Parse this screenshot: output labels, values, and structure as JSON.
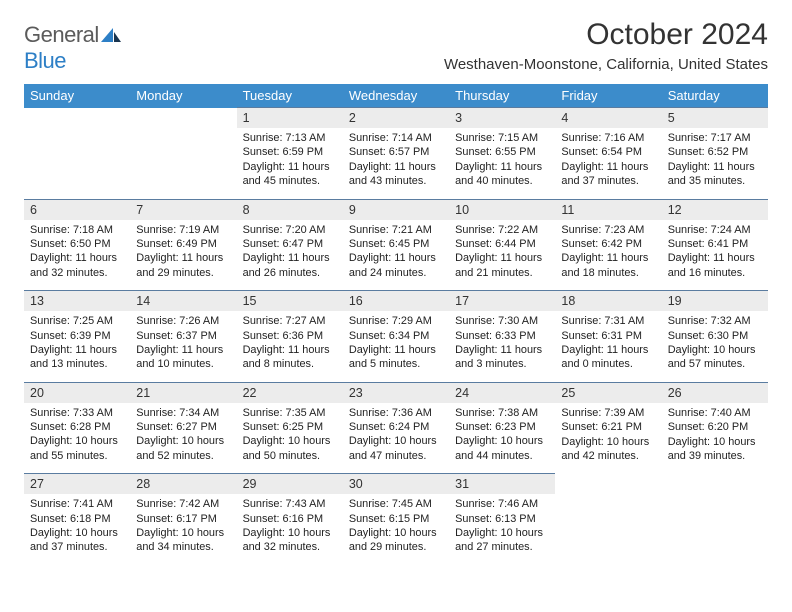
{
  "logo": {
    "text1": "General",
    "text2": "Blue"
  },
  "title": "October 2024",
  "location": "Westhaven-Moonstone, California, United States",
  "dayHeaders": [
    "Sunday",
    "Monday",
    "Tuesday",
    "Wednesday",
    "Thursday",
    "Friday",
    "Saturday"
  ],
  "colors": {
    "header_bg": "#3c8ccb",
    "header_text": "#ffffff",
    "daynum_bg": "#ececec",
    "rule": "#5a7ca0",
    "logo_gray": "#5b5b5b",
    "logo_blue": "#2d7fc6"
  },
  "weeks": [
    [
      null,
      null,
      {
        "n": "1",
        "sr": "Sunrise: 7:13 AM",
        "ss": "Sunset: 6:59 PM",
        "dl": "Daylight: 11 hours and 45 minutes."
      },
      {
        "n": "2",
        "sr": "Sunrise: 7:14 AM",
        "ss": "Sunset: 6:57 PM",
        "dl": "Daylight: 11 hours and 43 minutes."
      },
      {
        "n": "3",
        "sr": "Sunrise: 7:15 AM",
        "ss": "Sunset: 6:55 PM",
        "dl": "Daylight: 11 hours and 40 minutes."
      },
      {
        "n": "4",
        "sr": "Sunrise: 7:16 AM",
        "ss": "Sunset: 6:54 PM",
        "dl": "Daylight: 11 hours and 37 minutes."
      },
      {
        "n": "5",
        "sr": "Sunrise: 7:17 AM",
        "ss": "Sunset: 6:52 PM",
        "dl": "Daylight: 11 hours and 35 minutes."
      }
    ],
    [
      {
        "n": "6",
        "sr": "Sunrise: 7:18 AM",
        "ss": "Sunset: 6:50 PM",
        "dl": "Daylight: 11 hours and 32 minutes."
      },
      {
        "n": "7",
        "sr": "Sunrise: 7:19 AM",
        "ss": "Sunset: 6:49 PM",
        "dl": "Daylight: 11 hours and 29 minutes."
      },
      {
        "n": "8",
        "sr": "Sunrise: 7:20 AM",
        "ss": "Sunset: 6:47 PM",
        "dl": "Daylight: 11 hours and 26 minutes."
      },
      {
        "n": "9",
        "sr": "Sunrise: 7:21 AM",
        "ss": "Sunset: 6:45 PM",
        "dl": "Daylight: 11 hours and 24 minutes."
      },
      {
        "n": "10",
        "sr": "Sunrise: 7:22 AM",
        "ss": "Sunset: 6:44 PM",
        "dl": "Daylight: 11 hours and 21 minutes."
      },
      {
        "n": "11",
        "sr": "Sunrise: 7:23 AM",
        "ss": "Sunset: 6:42 PM",
        "dl": "Daylight: 11 hours and 18 minutes."
      },
      {
        "n": "12",
        "sr": "Sunrise: 7:24 AM",
        "ss": "Sunset: 6:41 PM",
        "dl": "Daylight: 11 hours and 16 minutes."
      }
    ],
    [
      {
        "n": "13",
        "sr": "Sunrise: 7:25 AM",
        "ss": "Sunset: 6:39 PM",
        "dl": "Daylight: 11 hours and 13 minutes."
      },
      {
        "n": "14",
        "sr": "Sunrise: 7:26 AM",
        "ss": "Sunset: 6:37 PM",
        "dl": "Daylight: 11 hours and 10 minutes."
      },
      {
        "n": "15",
        "sr": "Sunrise: 7:27 AM",
        "ss": "Sunset: 6:36 PM",
        "dl": "Daylight: 11 hours and 8 minutes."
      },
      {
        "n": "16",
        "sr": "Sunrise: 7:29 AM",
        "ss": "Sunset: 6:34 PM",
        "dl": "Daylight: 11 hours and 5 minutes."
      },
      {
        "n": "17",
        "sr": "Sunrise: 7:30 AM",
        "ss": "Sunset: 6:33 PM",
        "dl": "Daylight: 11 hours and 3 minutes."
      },
      {
        "n": "18",
        "sr": "Sunrise: 7:31 AM",
        "ss": "Sunset: 6:31 PM",
        "dl": "Daylight: 11 hours and 0 minutes."
      },
      {
        "n": "19",
        "sr": "Sunrise: 7:32 AM",
        "ss": "Sunset: 6:30 PM",
        "dl": "Daylight: 10 hours and 57 minutes."
      }
    ],
    [
      {
        "n": "20",
        "sr": "Sunrise: 7:33 AM",
        "ss": "Sunset: 6:28 PM",
        "dl": "Daylight: 10 hours and 55 minutes."
      },
      {
        "n": "21",
        "sr": "Sunrise: 7:34 AM",
        "ss": "Sunset: 6:27 PM",
        "dl": "Daylight: 10 hours and 52 minutes."
      },
      {
        "n": "22",
        "sr": "Sunrise: 7:35 AM",
        "ss": "Sunset: 6:25 PM",
        "dl": "Daylight: 10 hours and 50 minutes."
      },
      {
        "n": "23",
        "sr": "Sunrise: 7:36 AM",
        "ss": "Sunset: 6:24 PM",
        "dl": "Daylight: 10 hours and 47 minutes."
      },
      {
        "n": "24",
        "sr": "Sunrise: 7:38 AM",
        "ss": "Sunset: 6:23 PM",
        "dl": "Daylight: 10 hours and 44 minutes."
      },
      {
        "n": "25",
        "sr": "Sunrise: 7:39 AM",
        "ss": "Sunset: 6:21 PM",
        "dl": "Daylight: 10 hours and 42 minutes."
      },
      {
        "n": "26",
        "sr": "Sunrise: 7:40 AM",
        "ss": "Sunset: 6:20 PM",
        "dl": "Daylight: 10 hours and 39 minutes."
      }
    ],
    [
      {
        "n": "27",
        "sr": "Sunrise: 7:41 AM",
        "ss": "Sunset: 6:18 PM",
        "dl": "Daylight: 10 hours and 37 minutes."
      },
      {
        "n": "28",
        "sr": "Sunrise: 7:42 AM",
        "ss": "Sunset: 6:17 PM",
        "dl": "Daylight: 10 hours and 34 minutes."
      },
      {
        "n": "29",
        "sr": "Sunrise: 7:43 AM",
        "ss": "Sunset: 6:16 PM",
        "dl": "Daylight: 10 hours and 32 minutes."
      },
      {
        "n": "30",
        "sr": "Sunrise: 7:45 AM",
        "ss": "Sunset: 6:15 PM",
        "dl": "Daylight: 10 hours and 29 minutes."
      },
      {
        "n": "31",
        "sr": "Sunrise: 7:46 AM",
        "ss": "Sunset: 6:13 PM",
        "dl": "Daylight: 10 hours and 27 minutes."
      },
      null,
      null
    ]
  ]
}
